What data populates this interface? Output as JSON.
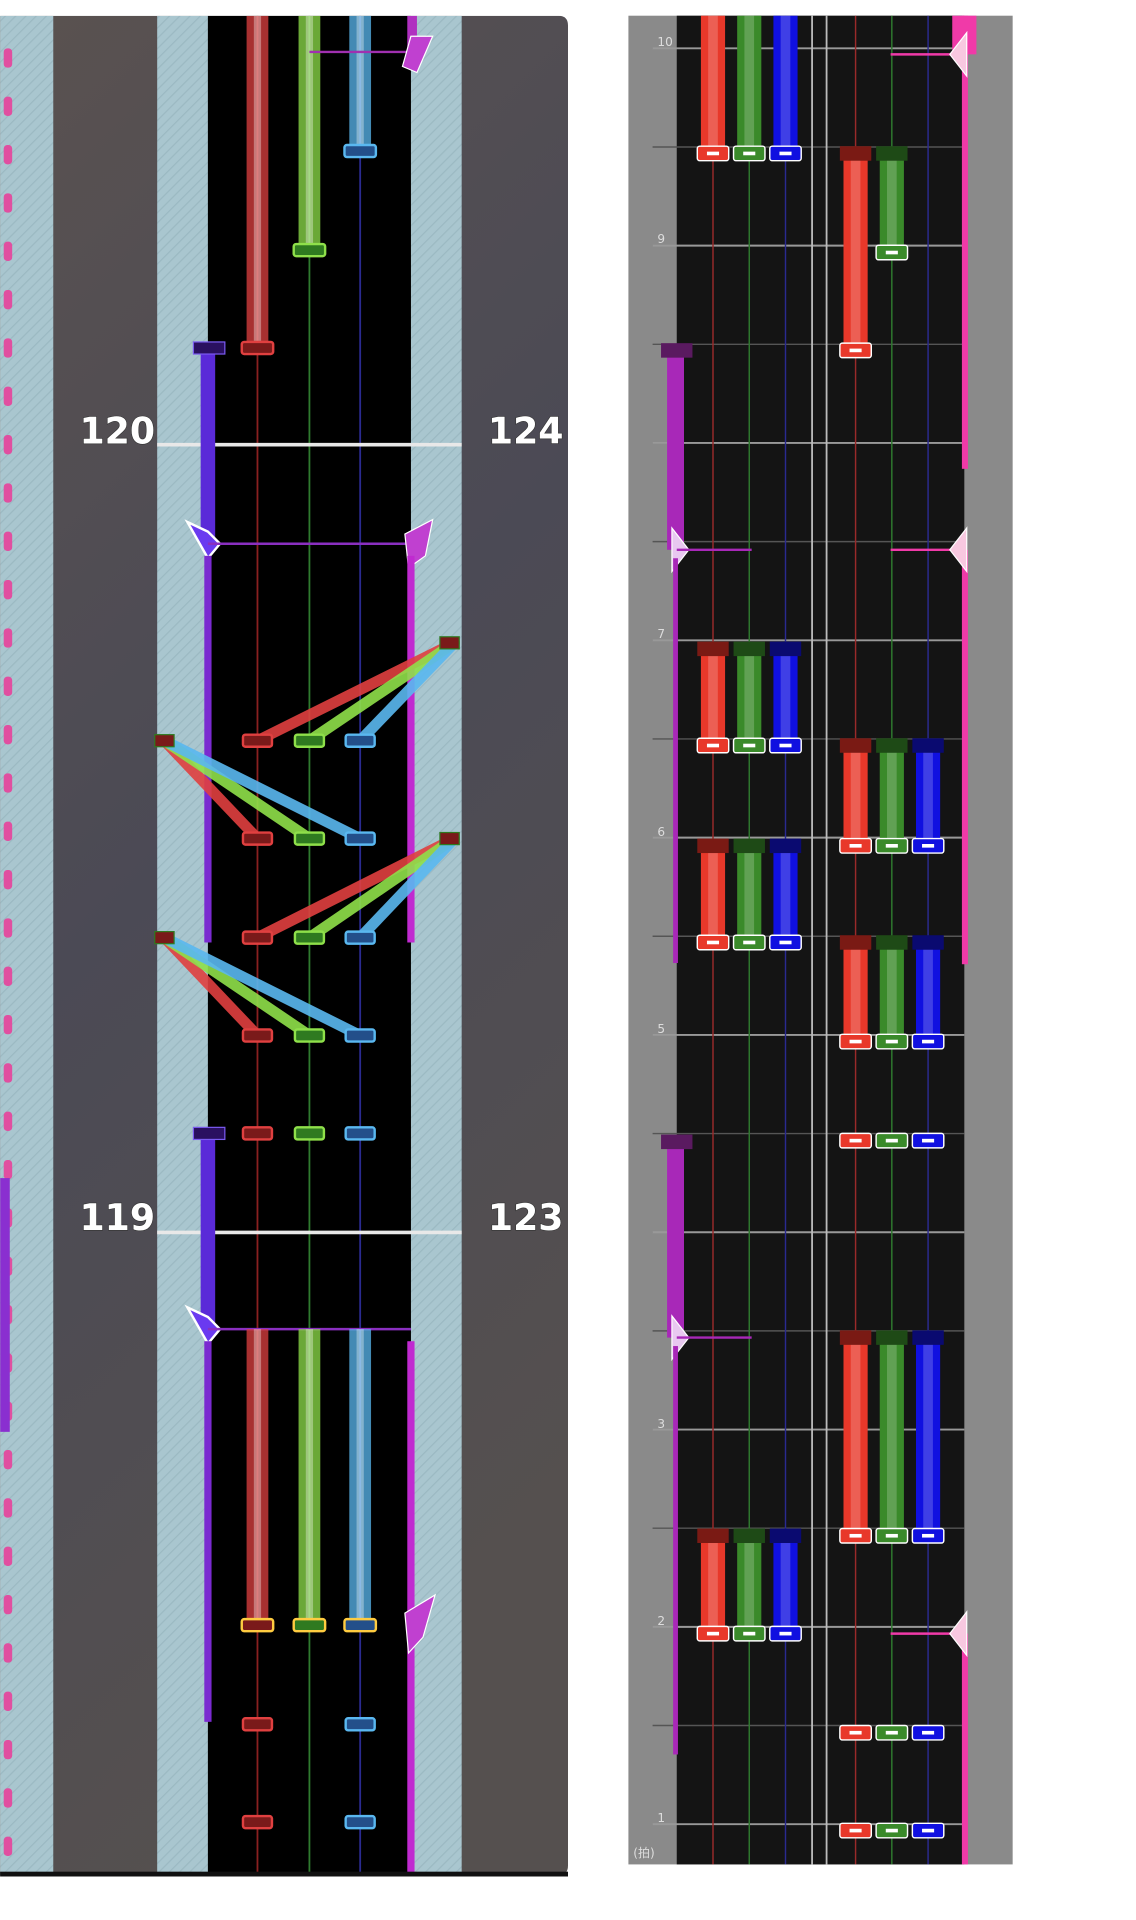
{
  "left_view": {
    "measure_labels": [
      "120",
      "124",
      "119",
      "123"
    ]
  },
  "right_view": {
    "beat_labels": [
      "10",
      "9",
      "7",
      "6",
      "5",
      "3",
      "2",
      "1"
    ],
    "unit_label": "(拍)"
  }
}
